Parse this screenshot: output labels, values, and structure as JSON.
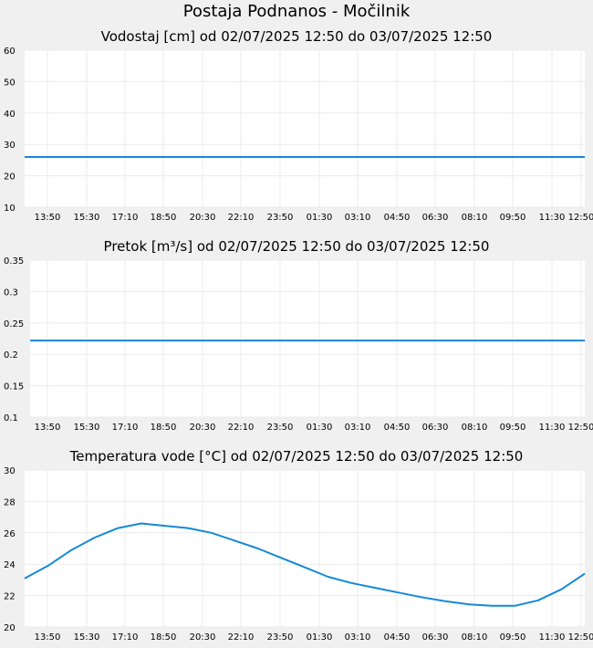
{
  "title": "Postaja Podnanos - Močilnik",
  "colors": {
    "line": "#1589d6",
    "plot_bg": "#ffffff",
    "grid": "#ebebeb",
    "page_bg": "#f0f0f0"
  },
  "chart_data": [
    {
      "type": "line",
      "title": "Vodostaj [cm] od 02/07/2025 12:50 do 03/07/2025 12:50",
      "x_ticks": [
        "13:50",
        "15:30",
        "17:10",
        "18:50",
        "20:30",
        "22:10",
        "23:50",
        "01:30",
        "03:10",
        "04:50",
        "06:30",
        "08:10",
        "09:50",
        "11:30",
        "12:50"
      ],
      "y_ticks": [
        "60",
        "50",
        "40",
        "30",
        "20",
        "10"
      ],
      "ylim": [
        10,
        60
      ],
      "grid": true,
      "series": [
        {
          "x": [
            "02/07/2025 12:50",
            "03/07/2025 12:50"
          ],
          "y": [
            26,
            26
          ]
        }
      ]
    },
    {
      "type": "line",
      "title": "Pretok [m³/s] od 02/07/2025 12:50 do 03/07/2025 12:50",
      "x_ticks": [
        "13:50",
        "15:30",
        "17:10",
        "18:50",
        "20:30",
        "22:10",
        "23:50",
        "01:30",
        "03:10",
        "04:50",
        "06:30",
        "08:10",
        "09:50",
        "11:30",
        "12:50"
      ],
      "y_ticks": [
        "0.35",
        "0.3",
        "0.25",
        "0.2",
        "0.15",
        "0.1"
      ],
      "ylim": [
        0.1,
        0.35
      ],
      "grid": true,
      "series": [
        {
          "x": [
            "02/07/2025 12:50",
            "03/07/2025 12:50"
          ],
          "y": [
            0.222,
            0.222
          ]
        }
      ]
    },
    {
      "type": "line",
      "title": "Temperatura vode [°C] od 02/07/2025 12:50 do 03/07/2025 12:50",
      "x_ticks": [
        "13:50",
        "15:30",
        "17:10",
        "18:50",
        "20:30",
        "22:10",
        "23:50",
        "01:30",
        "03:10",
        "04:50",
        "06:30",
        "08:10",
        "09:50",
        "11:30",
        "12:50"
      ],
      "y_ticks": [
        "30",
        "28",
        "26",
        "24",
        "22",
        "20"
      ],
      "ylim": [
        20,
        30
      ],
      "grid": true,
      "series": [
        {
          "x": [
            "02/07/2025 12:50",
            "02/07/2025 13:50",
            "02/07/2025 14:50",
            "02/07/2025 15:50",
            "02/07/2025 16:50",
            "02/07/2025 17:50",
            "02/07/2025 18:50",
            "02/07/2025 19:50",
            "02/07/2025 20:50",
            "02/07/2025 21:50",
            "02/07/2025 22:50",
            "02/07/2025 23:50",
            "03/07/2025 00:50",
            "03/07/2025 01:50",
            "03/07/2025 02:50",
            "03/07/2025 03:50",
            "03/07/2025 04:50",
            "03/07/2025 05:50",
            "03/07/2025 06:50",
            "03/07/2025 07:50",
            "03/07/2025 08:50",
            "03/07/2025 09:50",
            "03/07/2025 10:50",
            "03/07/2025 11:50",
            "03/07/2025 12:50"
          ],
          "y": [
            23.1,
            23.9,
            24.9,
            25.7,
            26.3,
            26.6,
            26.45,
            26.3,
            26.0,
            25.5,
            25.0,
            24.4,
            23.8,
            23.2,
            22.8,
            22.5,
            22.2,
            21.9,
            21.65,
            21.45,
            21.35,
            21.35,
            21.7,
            22.4,
            23.4
          ]
        }
      ]
    }
  ]
}
